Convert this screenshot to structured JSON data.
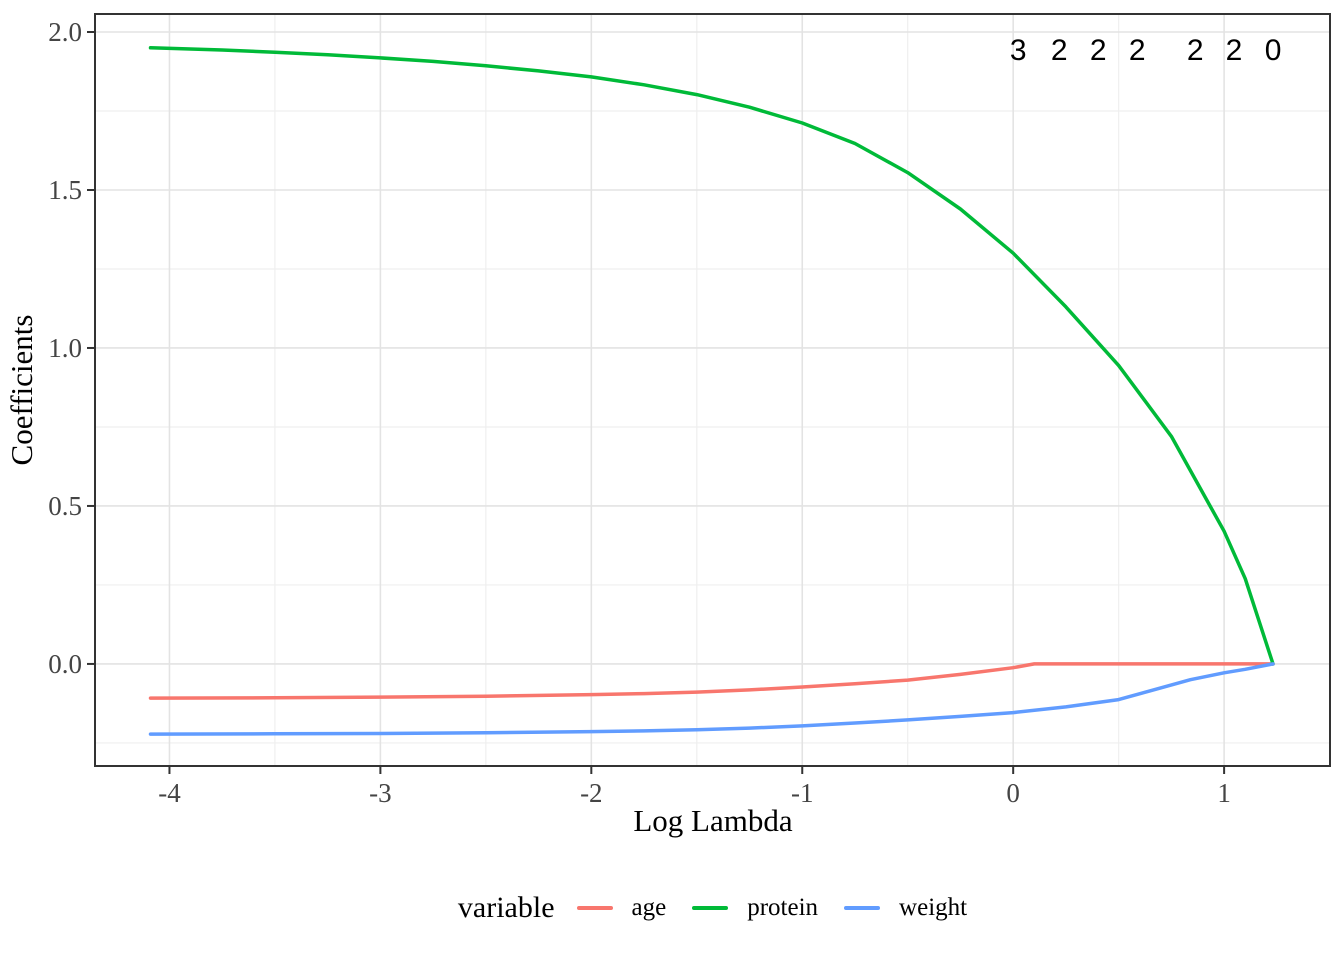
{
  "figure": {
    "background": "#ffffff",
    "panel_border_color": "#333333",
    "grid_major_color": "#e3e3e3",
    "grid_minor_color": "#efefef",
    "tick_color": "#333333",
    "tick_label_color": "#444444"
  },
  "chart_data": {
    "type": "line",
    "title": "",
    "xlabel": "Log Lambda",
    "ylabel": "Coefficients",
    "xlim": [
      -4.353,
      1.502
    ],
    "ylim": [
      -0.323,
      2.057
    ],
    "grid": true,
    "legend_position": "bottom",
    "legend_title": "variable",
    "x_ticks": [
      -4,
      -3,
      -2,
      -1,
      0,
      1
    ],
    "x_tick_labels": [
      "-4",
      "-3",
      "-2",
      "-1",
      "0",
      "1"
    ],
    "x_minor_ticks": [
      -3.5,
      -2.5,
      -1.5,
      -0.5,
      0.5
    ],
    "y_ticks": [
      0.0,
      0.5,
      1.0,
      1.5,
      2.0
    ],
    "y_tick_labels": [
      "0.0",
      "0.5",
      "1.0",
      "1.5",
      "2.0"
    ],
    "y_minor_ticks": [
      -0.25,
      0.25,
      0.75,
      1.25,
      1.75
    ],
    "top_axis_annotations": [
      {
        "x": 0.024,
        "label": "3"
      },
      {
        "x": 0.218,
        "label": "2"
      },
      {
        "x": 0.403,
        "label": "2"
      },
      {
        "x": 0.588,
        "label": "2"
      },
      {
        "x": 0.863,
        "label": "2"
      },
      {
        "x": 1.047,
        "label": "2"
      },
      {
        "x": 1.232,
        "label": "0"
      }
    ],
    "series": [
      {
        "name": "age",
        "color": "#F8766D",
        "points": [
          [
            -4.09,
            -0.108
          ],
          [
            -3.5,
            -0.107
          ],
          [
            -3.0,
            -0.105
          ],
          [
            -2.5,
            -0.102
          ],
          [
            -2.0,
            -0.097
          ],
          [
            -1.75,
            -0.094
          ],
          [
            -1.5,
            -0.089
          ],
          [
            -1.25,
            -0.082
          ],
          [
            -1.0,
            -0.073
          ],
          [
            -0.75,
            -0.063
          ],
          [
            -0.5,
            -0.051
          ],
          [
            -0.25,
            -0.033
          ],
          [
            0.0,
            -0.012
          ],
          [
            0.1,
            0.0
          ],
          [
            0.4,
            0.0
          ],
          [
            0.8,
            0.0
          ],
          [
            1.232,
            0.0
          ]
        ]
      },
      {
        "name": "protein",
        "color": "#00BA38",
        "points": [
          [
            -4.09,
            1.95
          ],
          [
            -3.75,
            1.943
          ],
          [
            -3.5,
            1.936
          ],
          [
            -3.25,
            1.928
          ],
          [
            -3.0,
            1.918
          ],
          [
            -2.75,
            1.907
          ],
          [
            -2.5,
            1.893
          ],
          [
            -2.25,
            1.877
          ],
          [
            -2.0,
            1.858
          ],
          [
            -1.75,
            1.833
          ],
          [
            -1.5,
            1.802
          ],
          [
            -1.25,
            1.762
          ],
          [
            -1.0,
            1.712
          ],
          [
            -0.75,
            1.647
          ],
          [
            -0.5,
            1.555
          ],
          [
            -0.25,
            1.44
          ],
          [
            0.0,
            1.3
          ],
          [
            0.25,
            1.13
          ],
          [
            0.5,
            0.945
          ],
          [
            0.75,
            0.72
          ],
          [
            1.0,
            0.42
          ],
          [
            1.1,
            0.27
          ],
          [
            1.232,
            0.0
          ]
        ]
      },
      {
        "name": "weight",
        "color": "#619CFF",
        "points": [
          [
            -4.09,
            -0.222
          ],
          [
            -3.5,
            -0.221
          ],
          [
            -3.0,
            -0.22
          ],
          [
            -2.5,
            -0.218
          ],
          [
            -2.0,
            -0.214
          ],
          [
            -1.75,
            -0.212
          ],
          [
            -1.5,
            -0.208
          ],
          [
            -1.25,
            -0.203
          ],
          [
            -1.0,
            -0.196
          ],
          [
            -0.75,
            -0.187
          ],
          [
            -0.5,
            -0.177
          ],
          [
            -0.25,
            -0.166
          ],
          [
            0.0,
            -0.154
          ],
          [
            0.25,
            -0.136
          ],
          [
            0.5,
            -0.113
          ],
          [
            0.65,
            -0.085
          ],
          [
            0.84,
            -0.05
          ],
          [
            1.0,
            -0.028
          ],
          [
            1.1,
            -0.017
          ],
          [
            1.232,
            0.0
          ]
        ]
      }
    ]
  }
}
